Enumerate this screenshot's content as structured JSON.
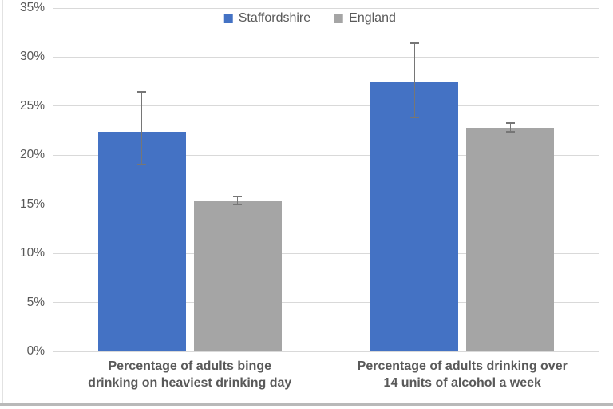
{
  "chart_data": {
    "type": "bar",
    "title": "",
    "categories": [
      "Percentage of adults binge\ndrinking on heaviest drinking day",
      "Percentage of adults drinking over\n14 units of alcohol a week"
    ],
    "series": [
      {
        "name": "Staffordshire",
        "color": "#4472C4",
        "values": [
          22.4,
          27.4
        ],
        "error_low": [
          19.0,
          23.8
        ],
        "error_high": [
          26.5,
          31.5
        ]
      },
      {
        "name": "England",
        "color": "#A5A5A5",
        "values": [
          15.3,
          22.8
        ],
        "error_low": [
          14.9,
          22.3
        ],
        "error_high": [
          15.9,
          23.4
        ]
      }
    ],
    "y_axis": {
      "min": 0,
      "max": 35,
      "step": 5,
      "tick_suffix": "%",
      "tick_labels": [
        "0%",
        "5%",
        "10%",
        "15%",
        "20%",
        "25%",
        "30%",
        "35%"
      ]
    },
    "xlabel": "",
    "ylabel": "",
    "legend_position": "top",
    "grid": true,
    "gridline_color": "#D9D9D9",
    "error_bar_color": "#767676",
    "text_color": "#595959"
  }
}
